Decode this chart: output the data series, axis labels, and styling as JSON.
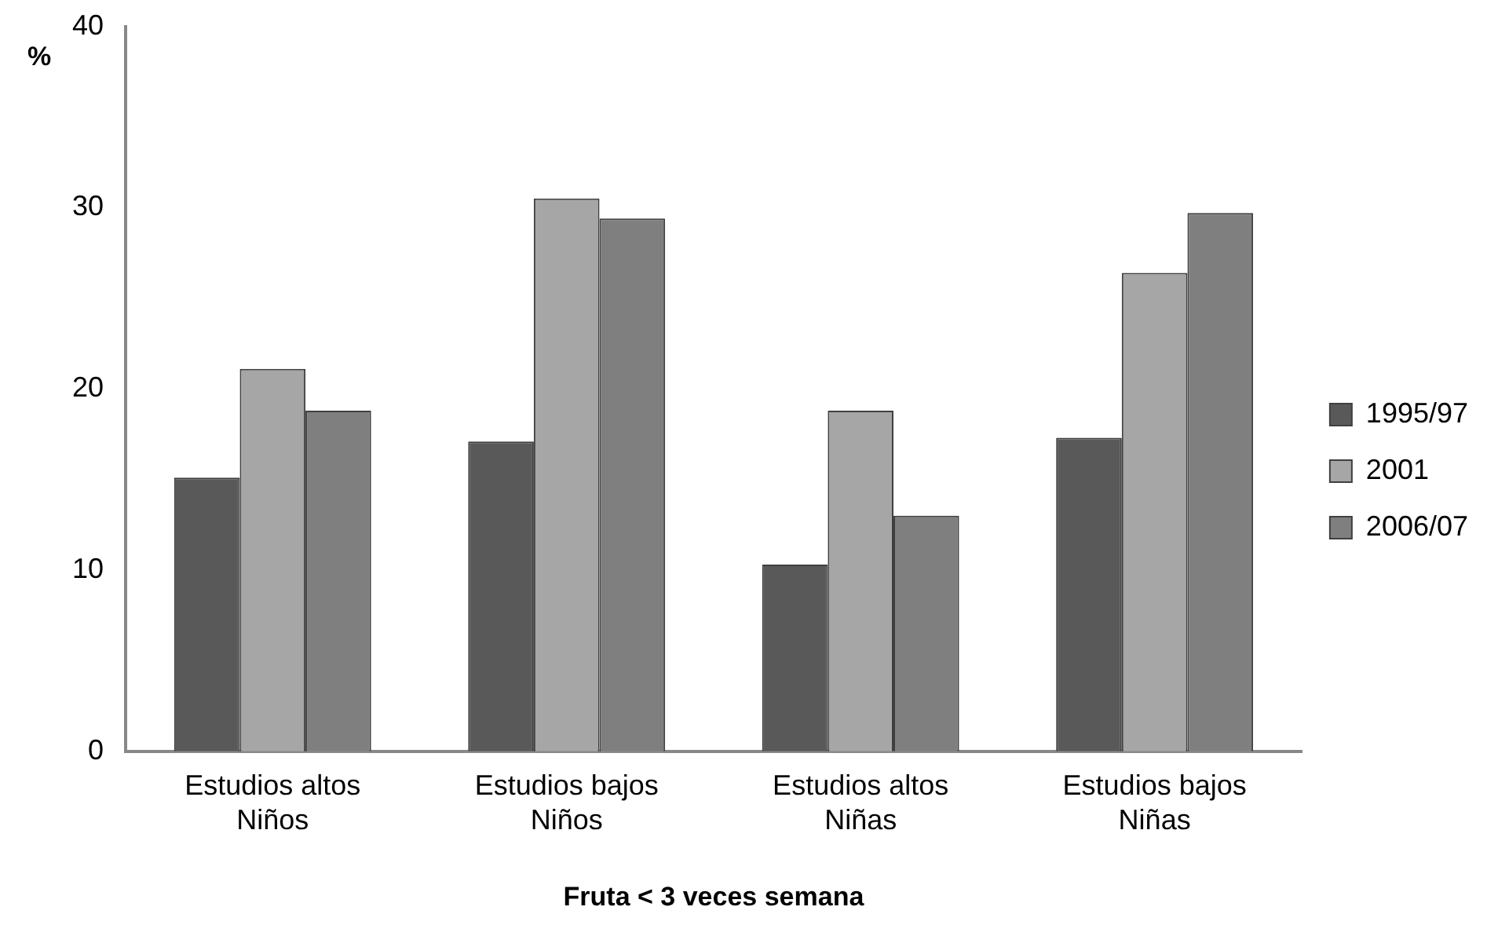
{
  "chart_data": {
    "type": "bar",
    "xlabel": "Fruta < 3 veces semana",
    "ylabel": "%",
    "categories": [
      "Estudios altos\nNiños",
      "Estudios bajos\nNiños",
      "Estudios altos\nNiñas",
      "Estudios bajos\nNiñas"
    ],
    "series": [
      {
        "name": "1995/97",
        "color": "#595959",
        "values": [
          15.1,
          17.1,
          10.3,
          17.3
        ]
      },
      {
        "name": "2001",
        "color": "#a6a6a6",
        "values": [
          21.1,
          30.5,
          18.8,
          26.4
        ]
      },
      {
        "name": "2006/07",
        "color": "#7f7f7f",
        "values": [
          18.8,
          29.4,
          13.0,
          29.7
        ]
      }
    ],
    "ylim": [
      0,
      40
    ],
    "yticks": [
      0,
      10,
      20,
      30,
      40
    ],
    "grid": false,
    "legend": "right"
  }
}
